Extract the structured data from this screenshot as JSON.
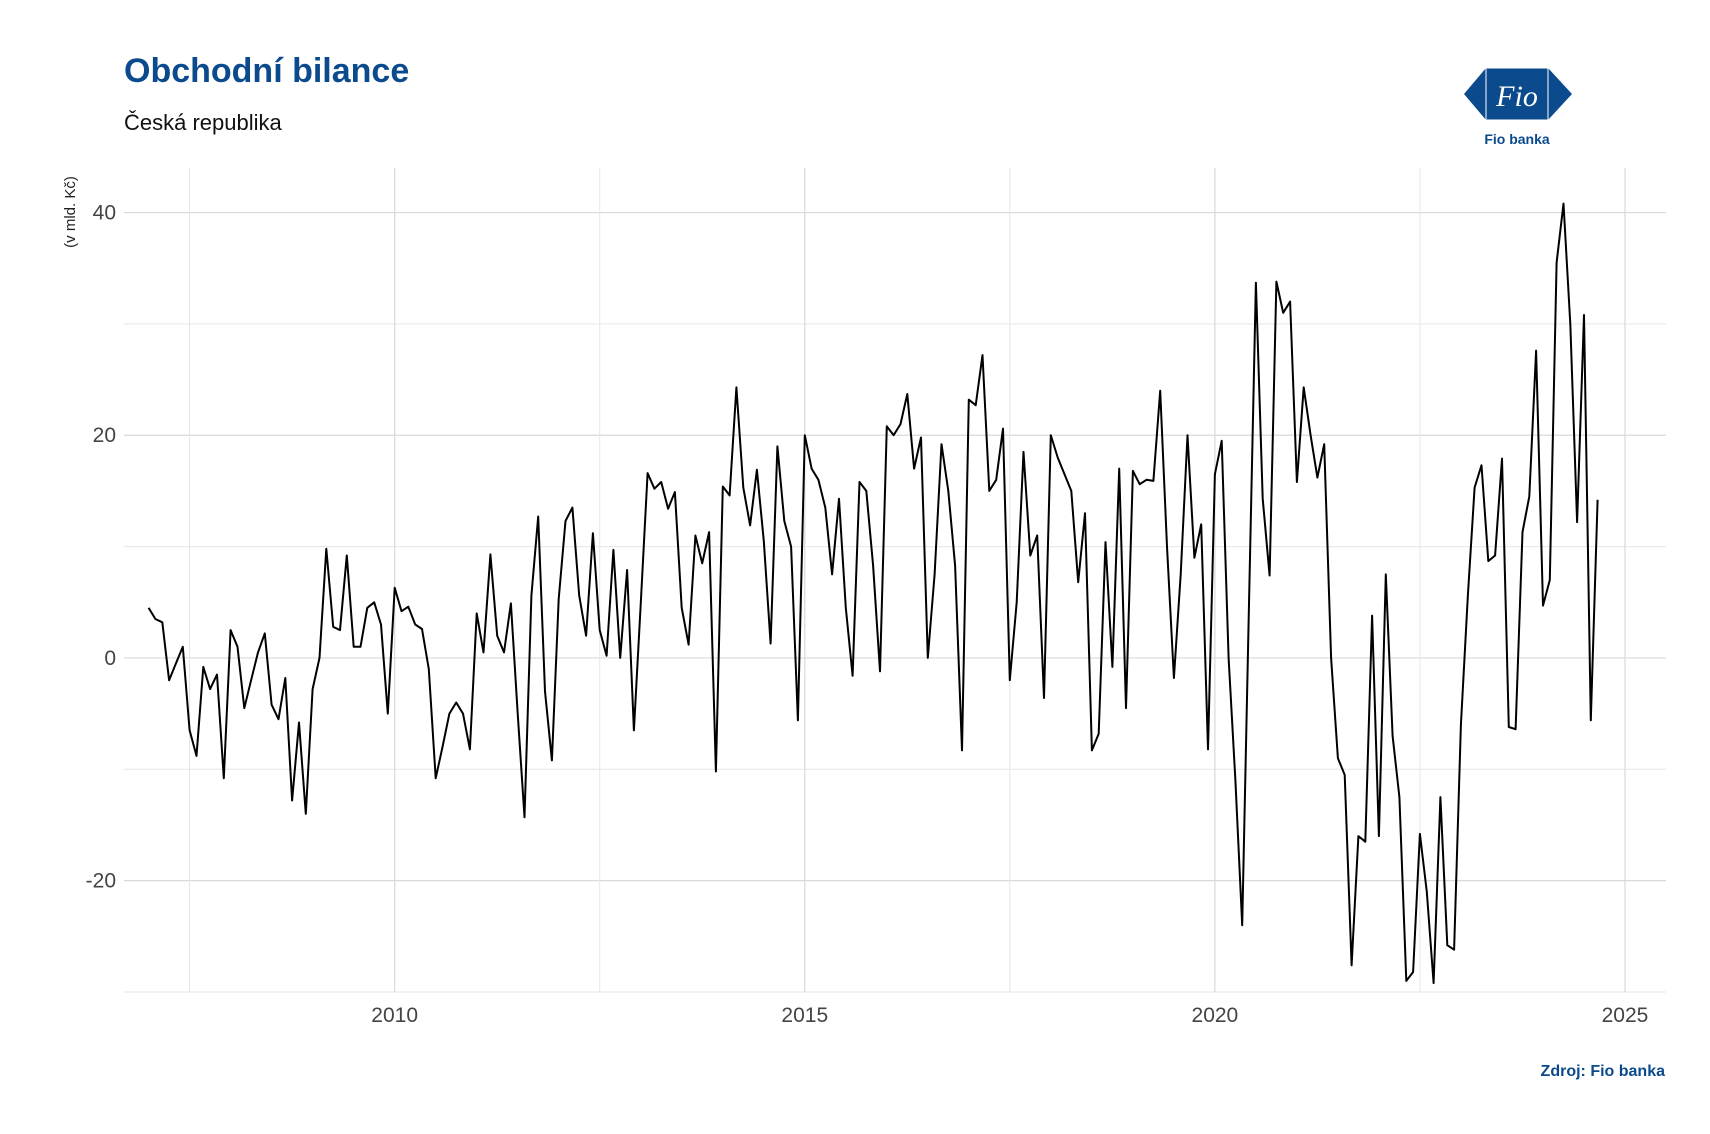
{
  "header": {
    "title": "Obchodní bilance",
    "subtitle": "Česká republika"
  },
  "logo": {
    "name": "Fio",
    "caption": "Fio banka",
    "color": "#0b4a8c"
  },
  "footer": {
    "source": "Zdroj: Fio banka"
  },
  "chart_data": {
    "type": "line",
    "title": "Obchodní bilance",
    "subtitle": "Česká republika",
    "xlabel": "",
    "ylabel": "(v mld. Kč)",
    "xlim": [
      2006.7,
      2025.5
    ],
    "ylim": [
      -30,
      44
    ],
    "x_ticks": [
      2010,
      2015,
      2020,
      2025
    ],
    "y_ticks": [
      -20,
      0,
      20,
      40
    ],
    "grid": true,
    "line_color": "#000000",
    "start_year": 2007,
    "frequency": "monthly",
    "series": [
      {
        "values": [
          4.5,
          3.5,
          3.2,
          -2.0,
          -0.5,
          1.0,
          -6.5,
          -8.8,
          -0.8,
          -2.8,
          -1.5,
          -10.8,
          2.5,
          1.0,
          -4.5,
          -2.0,
          0.5,
          2.2,
          -4.2,
          -5.5,
          -1.8,
          -12.8,
          -5.8,
          -14.0,
          -2.8,
          0.0,
          9.8,
          2.8,
          2.5,
          9.2,
          1.0,
          1.0,
          4.5,
          5.0,
          3.0,
          -5.0,
          6.3,
          4.2,
          4.6,
          3.0,
          2.6,
          -1.0,
          -10.8,
          -8.0,
          -5.0,
          -4.0,
          -5.0,
          -8.2,
          4.0,
          0.5,
          9.3,
          2.0,
          0.5,
          4.9,
          -5.0,
          -14.3,
          5.6,
          12.7,
          -3.0,
          -9.2,
          5.3,
          12.3,
          13.5,
          5.6,
          2.0,
          11.2,
          2.5,
          0.2,
          9.7,
          0.0,
          7.9,
          -6.5,
          4.8,
          16.6,
          15.2,
          15.8,
          13.4,
          14.9,
          4.5,
          1.2,
          11.0,
          8.5,
          11.3,
          -10.2,
          15.4,
          14.6,
          24.3,
          15.3,
          11.9,
          16.9,
          10.5,
          1.3,
          19.0,
          12.3,
          10.0,
          -5.6,
          20.0,
          17.0,
          16.0,
          13.5,
          7.5,
          14.3,
          4.5,
          -1.6,
          15.8,
          15.0,
          8.3,
          -1.2,
          20.8,
          20.0,
          21.0,
          23.7,
          17.0,
          19.8,
          0.0,
          7.5,
          19.2,
          15.0,
          8.3,
          -8.3,
          23.2,
          22.7,
          27.2,
          15.0,
          16.0,
          20.6,
          -2.0,
          5.0,
          18.5,
          9.2,
          11.0,
          -3.6,
          20.0,
          18.0,
          16.5,
          15.0,
          6.8,
          13.0,
          -8.3,
          -6.8,
          10.4,
          -0.8,
          17.0,
          -4.5,
          16.8,
          15.6,
          16.0,
          15.9,
          24.0,
          10.0,
          -1.8,
          7.5,
          20.0,
          9.0,
          12.0,
          -8.2,
          16.5,
          19.5,
          0.0,
          -11.0,
          -24.0,
          5.3,
          33.7,
          14.3,
          7.4,
          33.8,
          31.0,
          32.0,
          15.8,
          24.3,
          20.0,
          16.2,
          19.2,
          0.0,
          -9.0,
          -10.5,
          -27.6,
          -16.0,
          -16.5,
          3.8,
          -16.0,
          7.5,
          -7.0,
          -12.5,
          -29.0,
          -28.2,
          -15.8,
          -21.0,
          -29.2,
          -12.5,
          -25.8,
          -26.2,
          -6.0,
          5.5,
          15.3,
          17.3,
          8.7,
          9.2,
          17.9,
          -6.2,
          -6.4,
          11.3,
          14.5,
          27.6,
          4.7,
          7.0,
          35.5,
          40.8,
          30.0,
          12.2,
          30.8,
          -5.6,
          14.2
        ]
      }
    ]
  }
}
